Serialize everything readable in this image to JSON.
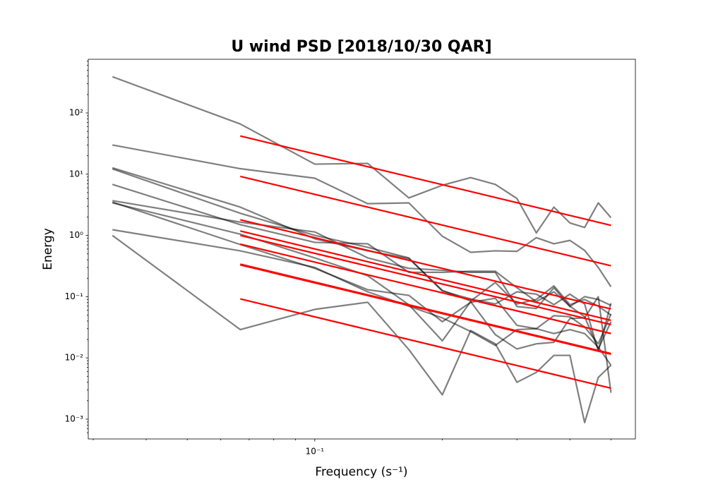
{
  "chart_data": {
    "type": "line",
    "title": "U wind PSD [2018/10/30 QAR]",
    "x_label": "Frequency (s⁻¹)",
    "y_label": "Energy",
    "x_scale": "log",
    "y_scale": "log",
    "xlim": [
      0.0292,
      0.571
    ],
    "ylim": [
      0.000475,
      752
    ],
    "xticks": [
      {
        "value": 0.1,
        "label": "10⁻¹"
      }
    ],
    "xminorticks": [
      0.03,
      0.04,
      0.05,
      0.06,
      0.07,
      0.08,
      0.09,
      0.2,
      0.3,
      0.4,
      0.5
    ],
    "yticks": [
      {
        "value": 0.001,
        "label": "10⁻³"
      },
      {
        "value": 0.01,
        "label": "10⁻²"
      },
      {
        "value": 0.1,
        "label": "10⁻¹"
      },
      {
        "value": 1,
        "label": "10⁰"
      },
      {
        "value": 10,
        "label": "10¹"
      },
      {
        "value": 100,
        "label": "10²"
      }
    ],
    "yminorticks": [
      0.0006,
      0.0007,
      0.0008,
      0.0009,
      0.002,
      0.003,
      0.004,
      0.005,
      0.006,
      0.007,
      0.008,
      0.009,
      0.02,
      0.03,
      0.04,
      0.05,
      0.06,
      0.07,
      0.08,
      0.09,
      0.2,
      0.3,
      0.4,
      0.5,
      0.6,
      0.7,
      0.8,
      0.9,
      2,
      3,
      4,
      5,
      6,
      7,
      8,
      9,
      20,
      30,
      40,
      50,
      60,
      70,
      80,
      90,
      200,
      300,
      400,
      500,
      600,
      700
    ],
    "x": [
      0.0333,
      0.0667,
      0.1,
      0.1333,
      0.1667,
      0.2,
      0.2333,
      0.2667,
      0.3,
      0.3333,
      0.3667,
      0.4,
      0.4333,
      0.4667,
      0.5
    ],
    "series": [
      {
        "color": "#000000",
        "opacity": 0.5,
        "values": [
          390,
          66,
          14.6,
          15,
          4.1,
          6.6,
          8.8,
          6.8,
          4.0,
          1.1,
          2.9,
          1.6,
          1.35,
          3.4,
          1.95
        ]
      },
      {
        "color": "#000000",
        "opacity": 0.5,
        "values": [
          30,
          12.3,
          8.6,
          3.3,
          3.4,
          0.97,
          0.53,
          0.56,
          0.55,
          0.92,
          0.73,
          0.83,
          0.57,
          0.3,
          0.145
        ]
      },
      {
        "color": "#000000",
        "opacity": 0.5,
        "values": [
          12.7,
          2.9,
          0.88,
          0.56,
          0.42,
          0.127,
          0.085,
          0.17,
          0.076,
          0.09,
          0.15,
          0.074,
          0.09,
          0.07,
          0.05
        ]
      },
      {
        "color": "#000000",
        "opacity": 0.5,
        "values": [
          12.2,
          2.3,
          1.0,
          0.64,
          0.43,
          0.123,
          0.092,
          0.076,
          0.12,
          0.11,
          0.074,
          0.11,
          0.076,
          0.013,
          0.078
        ]
      },
      {
        "color": "#000000",
        "opacity": 0.5,
        "values": [
          6.8,
          1.5,
          0.77,
          0.73,
          0.25,
          0.25,
          0.26,
          0.26,
          0.14,
          0.083,
          0.12,
          0.07,
          0.047,
          0.014,
          0.039
        ]
      },
      {
        "color": "#000000",
        "opacity": 0.5,
        "values": [
          3.7,
          1.65,
          1.14,
          0.43,
          0.29,
          0.27,
          0.25,
          0.25,
          0.069,
          0.064,
          0.14,
          0.069,
          0.1,
          0.09,
          0.072
        ]
      },
      {
        "color": "#000000",
        "opacity": 0.5,
        "values": [
          3.5,
          0.71,
          0.29,
          0.13,
          0.105,
          0.039,
          0.081,
          0.094,
          0.034,
          0.03,
          0.049,
          0.047,
          0.032,
          0.017,
          0.052
        ]
      },
      {
        "color": "#000000",
        "opacity": 0.5,
        "values": [
          3.4,
          1.05,
          0.43,
          0.22,
          0.074,
          0.019,
          0.083,
          0.024,
          0.014,
          0.017,
          0.018,
          0.044,
          0.045,
          0.1,
          0.0027
        ]
      },
      {
        "color": "#000000",
        "opacity": 0.5,
        "values": [
          1.24,
          0.56,
          0.3,
          0.12,
          0.07,
          0.045,
          0.027,
          0.016,
          0.029,
          0.03,
          0.025,
          0.029,
          0.025,
          0.015,
          0.0076
        ]
      },
      {
        "color": "#000000",
        "opacity": 0.5,
        "values": [
          1.0,
          0.029,
          0.062,
          0.081,
          0.0137,
          0.0025,
          0.028,
          0.017,
          0.004,
          0.0058,
          0.011,
          0.011,
          0.00088,
          0.0048,
          0.0076
        ]
      },
      {
        "color": "#ff0000",
        "opacity": 1,
        "x": [
          0.0667,
          0.5
        ],
        "values": [
          42,
          1.46
        ]
      },
      {
        "color": "#ff0000",
        "opacity": 1,
        "x": [
          0.0667,
          0.5
        ],
        "values": [
          9.2,
          0.32
        ]
      },
      {
        "color": "#ff0000",
        "opacity": 1,
        "x": [
          0.0667,
          0.5
        ],
        "values": [
          1.8,
          0.063
        ]
      },
      {
        "color": "#ff0000",
        "opacity": 1,
        "x": [
          0.0667,
          0.5
        ],
        "values": [
          1.18,
          0.041
        ]
      },
      {
        "color": "#ff0000",
        "opacity": 1,
        "x": [
          0.0667,
          0.5
        ],
        "values": [
          1.0,
          0.035
        ]
      },
      {
        "color": "#ff0000",
        "opacity": 1,
        "x": [
          0.0667,
          0.5
        ],
        "values": [
          0.72,
          0.025
        ]
      },
      {
        "color": "#ff0000",
        "opacity": 1,
        "x": [
          0.0667,
          0.5
        ],
        "values": [
          0.34,
          0.0118
        ]
      },
      {
        "color": "#ff0000",
        "opacity": 1,
        "x": [
          0.0667,
          0.5
        ],
        "values": [
          0.33,
          0.0115
        ]
      },
      {
        "color": "#ff0000",
        "opacity": 1,
        "x": [
          0.0667,
          0.5
        ],
        "values": [
          0.092,
          0.0032
        ]
      }
    ]
  }
}
